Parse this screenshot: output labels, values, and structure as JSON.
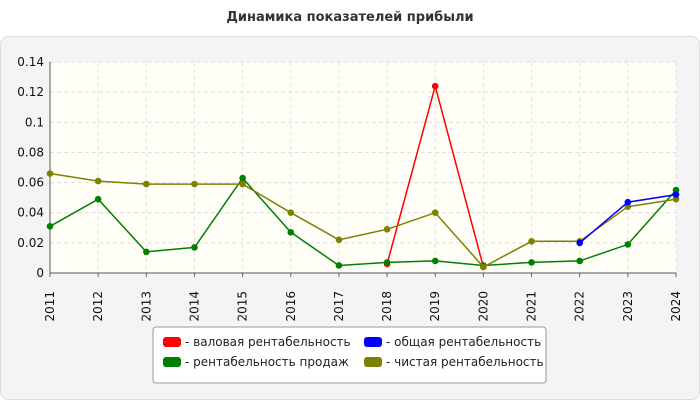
{
  "chart_data": {
    "type": "line",
    "title": "Динамика показателей прибыли",
    "x": [
      "2011",
      "2012",
      "2013",
      "2014",
      "2015",
      "2016",
      "2017",
      "2018",
      "2019",
      "2020",
      "2021",
      "2022",
      "2023",
      "2024"
    ],
    "ylim": [
      0,
      0.14
    ],
    "yticks": [
      "0",
      "0.02",
      "0.04",
      "0.06",
      "0.08",
      "0.1",
      "0.12",
      "0.14"
    ],
    "grid": true,
    "legend_position": "bottom",
    "series": [
      {
        "name": "- валовая рентабельность",
        "color": "#ff0000",
        "values": [
          null,
          null,
          null,
          null,
          null,
          null,
          null,
          0.006,
          0.124,
          0.004,
          null,
          null,
          null,
          null
        ]
      },
      {
        "name": "- общая рентабельность",
        "color": "#0000ff",
        "values": [
          null,
          null,
          null,
          null,
          null,
          null,
          null,
          null,
          null,
          null,
          null,
          0.02,
          0.047,
          0.052
        ]
      },
      {
        "name": "- рентабельность продаж",
        "color": "#008000",
        "values": [
          0.031,
          0.049,
          0.014,
          0.017,
          0.063,
          0.027,
          0.005,
          0.007,
          0.008,
          0.005,
          0.007,
          0.008,
          0.019,
          0.055
        ]
      },
      {
        "name": "- чистая рентабельность",
        "color": "#808000",
        "values": [
          0.066,
          0.061,
          0.059,
          0.059,
          0.059,
          0.04,
          0.022,
          0.029,
          0.04,
          0.004,
          0.021,
          0.021,
          0.044,
          0.049
        ]
      }
    ]
  }
}
